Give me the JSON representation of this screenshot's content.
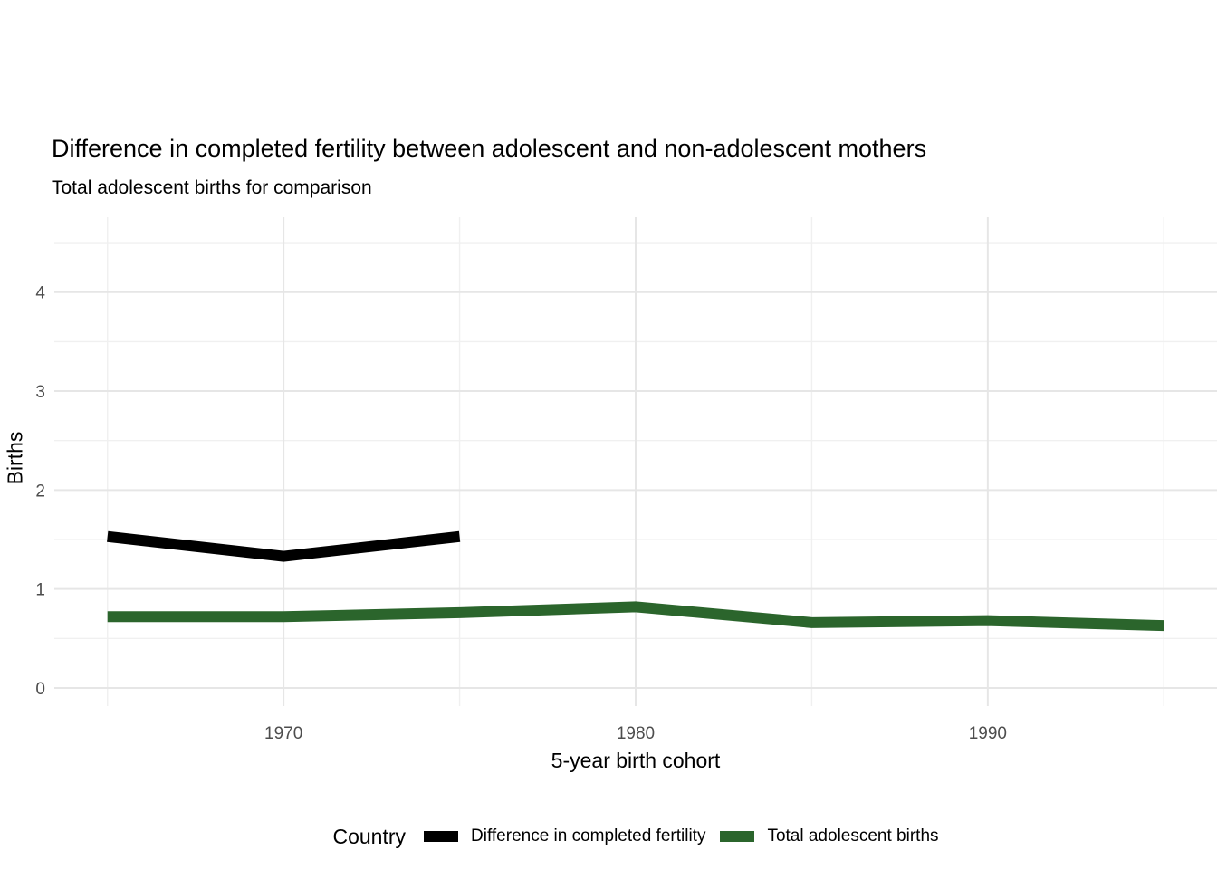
{
  "chart_data": {
    "type": "line",
    "title": "Difference in completed fertility between adolescent and non-adolescent mothers",
    "subtitle": "Total adolescent births for comparison",
    "xlabel": "5-year birth cohort",
    "ylabel": "Births",
    "x_major_ticks": [
      1970,
      1980,
      1990
    ],
    "x_minor_ticks": [
      1965,
      1975,
      1985,
      1995
    ],
    "y_major_ticks": [
      0,
      1,
      2,
      3,
      4
    ],
    "y_minor_ticks": [
      0.5,
      1.5,
      2.5,
      3.5,
      4.5
    ],
    "xlim": [
      1963.49,
      1996.51
    ],
    "ylim": [
      -0.183,
      4.757
    ],
    "grid": true,
    "legend_position": "bottom",
    "legend_title": "Country",
    "series": [
      {
        "name": "Difference in completed fertility",
        "color": "#000000",
        "x": [
          1965,
          1970,
          1975
        ],
        "values": [
          1.53,
          1.33,
          1.53
        ]
      },
      {
        "name": "Total adolescent births",
        "color": "#2b652c",
        "x": [
          1965,
          1970,
          1975,
          1980,
          1985,
          1990,
          1995
        ],
        "values": [
          0.72,
          0.72,
          0.76,
          0.82,
          0.66,
          0.68,
          0.63
        ]
      }
    ],
    "colors": {
      "grid_major": "#e6e6e6",
      "grid_minor": "#f0f0f0",
      "tick_label": "#4d4d4d",
      "background": "#ffffff"
    }
  }
}
